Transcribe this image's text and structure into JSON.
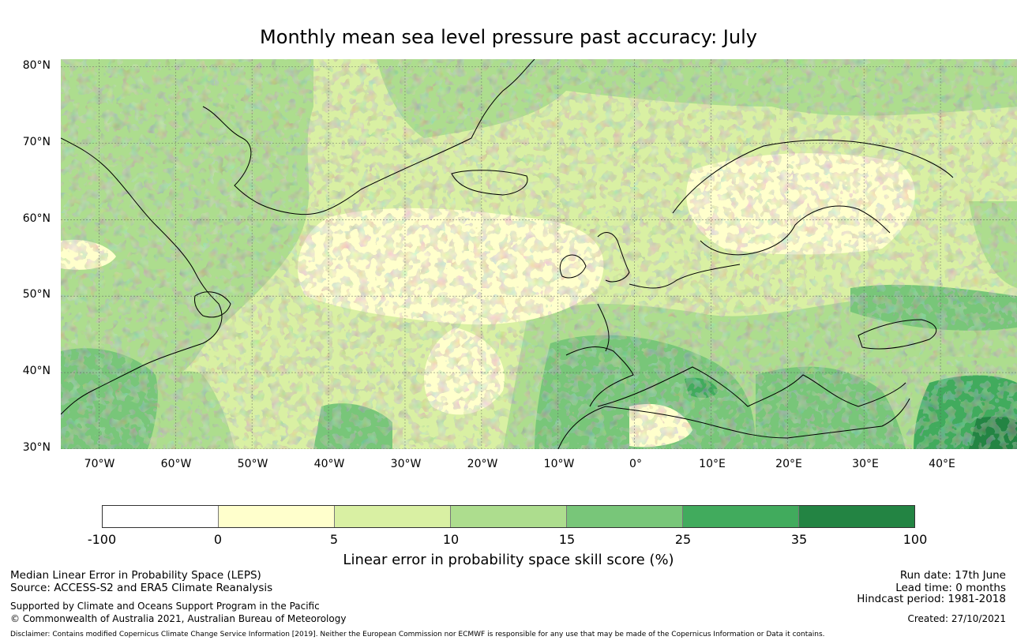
{
  "title": "Monthly mean sea level pressure past accuracy: July",
  "map": {
    "projection": "equirectangular",
    "lon_range": [
      -75,
      50
    ],
    "lat_range": [
      30,
      81
    ],
    "lat_ticks": [
      "80°N",
      "70°N",
      "60°N",
      "50°N",
      "40°N",
      "30°N"
    ],
    "lon_ticks": [
      "70°W",
      "60°W",
      "50°W",
      "40°W",
      "30°W",
      "20°W",
      "10°W",
      "0°",
      "10°E",
      "20°E",
      "30°E",
      "40°E"
    ],
    "gridlines": true,
    "features": [
      "Greenland",
      "Iceland",
      "Scandinavia",
      "British Isles",
      "Europe",
      "Mediterranean Sea",
      "Black Sea",
      "North Africa",
      "Canada",
      "Labrador",
      "Newfoundland"
    ]
  },
  "colorbar": {
    "ticks": [
      "-100",
      "0",
      "5",
      "10",
      "15",
      "25",
      "35",
      "100"
    ],
    "colors": [
      "#ffffff",
      "#ffffcc",
      "#d9f0a3",
      "#addd8e",
      "#78c679",
      "#41ab5d",
      "#238443"
    ],
    "label": "Linear error in probability space skill score (%)"
  },
  "footer": {
    "left": {
      "line1": "Median Linear Error in Probability Space (LEPS)",
      "line2": "Source: ACCESS-S2 and ERA5 Climate Reanalysis",
      "line3": "Supported by Climate and Oceans Support Program in the Pacific",
      "line4": "© Commonwealth of Australia 2021, Australian Bureau of Meteorology"
    },
    "right": {
      "run_date": "Run date: 17th June",
      "lead_time": "Lead time: 0 months",
      "hindcast": "Hindcast period: 1981-2018",
      "created": "Created: 27/10/2021"
    },
    "disclaimer": "Disclaimer: Contains modified Copernicus Climate Change Service Information [2019]. Neither the European Commission nor ECMWF is responsible for any use that may be made of the Copernicus Information or Data it contains."
  }
}
